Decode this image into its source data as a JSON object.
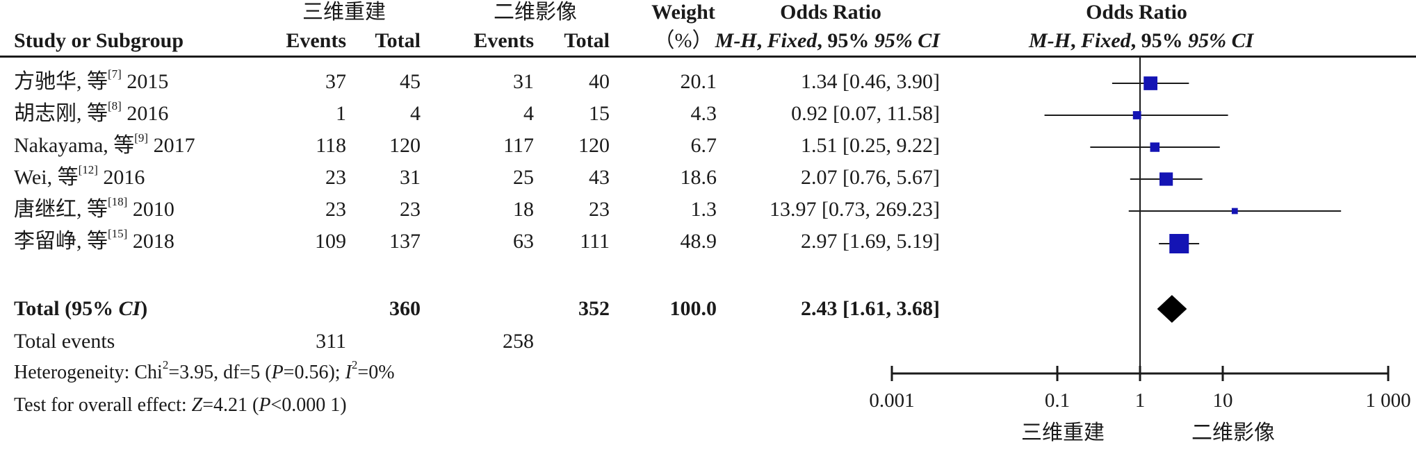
{
  "header": {
    "group1": "三维重建",
    "group2": "二维影像",
    "study": "Study or Subgroup",
    "events1": "Events",
    "total1": "Total",
    "events2": "Events",
    "total2": "Total",
    "weight": "Weight",
    "weight_unit": "（%）",
    "or_title": "Odds Ratio",
    "or_method": "M-H",
    "or_fixed": "Fixed",
    "or_ci": "95% CI",
    "plot_title": "Odds Ratio",
    "plot_method": "M-H",
    "plot_fixed": "Fixed",
    "plot_ci": "95% CI"
  },
  "studies": [
    {
      "author": "方驰华, 等",
      "ref": "[7]",
      "year": "2015",
      "e1": "37",
      "t1": "45",
      "e2": "31",
      "t2": "40",
      "weight": "20.1",
      "or_text": "1.34 [0.46, 3.90]"
    },
    {
      "author": "胡志刚, 等",
      "ref": "[8]",
      "year": "2016",
      "e1": "1",
      "t1": "4",
      "e2": "4",
      "t2": "15",
      "weight": "4.3",
      "or_text": "0.92 [0.07, 11.58]"
    },
    {
      "author": "Nakayama, 等",
      "ref": "[9]",
      "year": "2017",
      "e1": "118",
      "t1": "120",
      "e2": "117",
      "t2": "120",
      "weight": "6.7",
      "or_text": "1.51 [0.25, 9.22]"
    },
    {
      "author": "Wei, 等",
      "ref": "[12]",
      "year": "2016",
      "e1": "23",
      "t1": "31",
      "e2": "25",
      "t2": "43",
      "weight": "18.6",
      "or_text": "2.07 [0.76, 5.67]"
    },
    {
      "author": "唐继红, 等",
      "ref": "[18]",
      "year": "2010",
      "e1": "23",
      "t1": "23",
      "e2": "18",
      "t2": "23",
      "weight": "1.3",
      "or_text": "13.97 [0.73, 269.23]"
    },
    {
      "author": "李留峥, 等",
      "ref": "[15]",
      "year": "2018",
      "e1": "109",
      "t1": "137",
      "e2": "63",
      "t2": "111",
      "weight": "48.9",
      "or_text": "2.97 [1.69, 5.19]"
    }
  ],
  "total": {
    "label_pre": "Total (95% ",
    "label_ci": "CI",
    "label_post": ")",
    "t1": "360",
    "t2": "352",
    "weight": "100.0",
    "or_text": "2.43 [1.61, 3.68]"
  },
  "total_events": {
    "label": "Total events",
    "e1": "311",
    "e2": "258"
  },
  "heterogeneity": {
    "prefix": "Heterogeneity: Chi",
    "chi_sup": "2",
    "mid": "=3.95, df=5 (",
    "p": "P",
    "p_val": "=0.56); ",
    "i": "I",
    "i_sup": "2",
    "i_val": "=0%"
  },
  "overall": {
    "prefix": "Test for overall effect: ",
    "z": "Z",
    "z_val": "=4.21 (",
    "p": "P",
    "p_val": "<0.000 1)"
  },
  "axis": {
    "ticks": [
      "0.001",
      "0.1",
      "1",
      "10",
      "1 000"
    ],
    "favours_left": "三维重建",
    "favours_right": "二维影像"
  },
  "chart_data": {
    "type": "forest",
    "scale": "log",
    "xlim": [
      0.001,
      1000
    ],
    "ticks": [
      0.001,
      0.1,
      1,
      10,
      1000
    ],
    "null_line": 1,
    "studies": [
      {
        "label": "方驰华, 等 2015",
        "or": 1.34,
        "lo": 0.46,
        "hi": 3.9,
        "weight": 20.1
      },
      {
        "label": "胡志刚, 等 2016",
        "or": 0.92,
        "lo": 0.07,
        "hi": 11.58,
        "weight": 4.3
      },
      {
        "label": "Nakayama, 等 2017",
        "or": 1.51,
        "lo": 0.25,
        "hi": 9.22,
        "weight": 6.7
      },
      {
        "label": "Wei, 等 2016",
        "or": 2.07,
        "lo": 0.76,
        "hi": 5.67,
        "weight": 18.6
      },
      {
        "label": "唐继红, 等 2010",
        "or": 13.97,
        "lo": 0.73,
        "hi": 269.23,
        "weight": 1.3
      },
      {
        "label": "李留峥, 等 2018",
        "or": 2.97,
        "lo": 1.69,
        "hi": 5.19,
        "weight": 48.9
      }
    ],
    "total": {
      "or": 2.43,
      "lo": 1.61,
      "hi": 3.68,
      "weight": 100.0
    },
    "colors": {
      "study_marker": "#1414b4",
      "total_marker": "#000000",
      "line": "#1a1a1a"
    }
  }
}
